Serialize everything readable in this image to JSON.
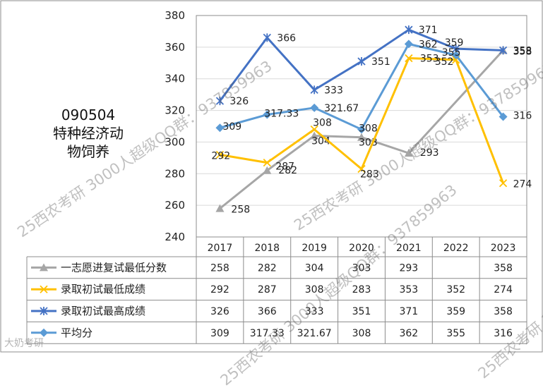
{
  "title_lines": [
    "090504",
    "特种经济动",
    "物饲养"
  ],
  "watermark_text": "25西农考研 3000人超级QQ群：937859963",
  "logo_text": "大奶考研",
  "chart_data": {
    "type": "line",
    "categories": [
      "2017",
      "2018",
      "2019",
      "2020",
      "2021",
      "2022",
      "2023"
    ],
    "ylim": [
      240,
      380
    ],
    "yticks": [
      240,
      260,
      280,
      300,
      320,
      340,
      360,
      380
    ],
    "grid": true,
    "legend_position": "data-table-left",
    "series": [
      {
        "name": "一志愿进复试最低分数",
        "color": "#a6a6a6",
        "marker": "triangle",
        "values": [
          258,
          282,
          304,
          303,
          293,
          null,
          358
        ],
        "labels": [
          "258",
          "282",
          "304",
          "303",
          "293",
          "",
          "358"
        ]
      },
      {
        "name": "录取初试最低成绩",
        "color": "#ffc000",
        "marker": "x",
        "values": [
          292,
          287,
          308,
          283,
          353,
          352,
          274
        ],
        "labels": [
          "292",
          "287",
          "308",
          "283",
          "353",
          "352",
          "274"
        ]
      },
      {
        "name": "录取初试最高成绩",
        "color": "#4472c4",
        "marker": "star",
        "values": [
          326,
          366,
          333,
          351,
          371,
          359,
          358
        ],
        "labels": [
          "326",
          "366",
          "333",
          "351",
          "371",
          "359",
          "358"
        ]
      },
      {
        "name": "平均分",
        "color": "#5b9bd5",
        "marker": "diamond",
        "values": [
          309,
          317.33,
          321.67,
          308,
          362,
          355,
          316
        ],
        "labels": [
          "309",
          "317.33",
          "321.67",
          "308",
          "362",
          "355",
          "316"
        ]
      }
    ]
  }
}
